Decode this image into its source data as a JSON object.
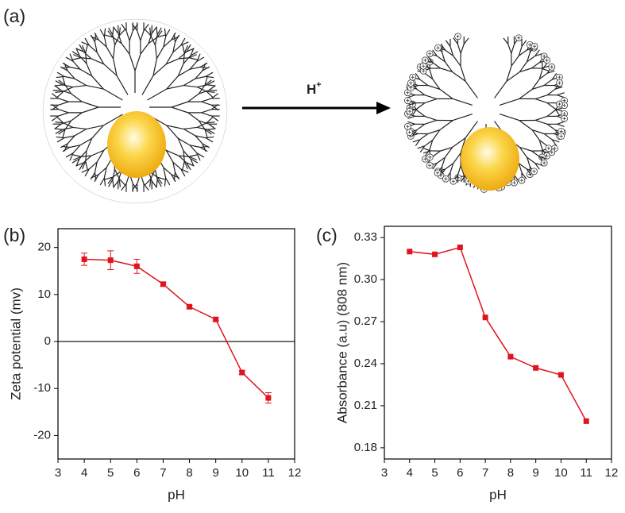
{
  "diagram": {
    "panel_label": "(a)",
    "arrow_label": "H",
    "arrow_label_superscript": "+"
  },
  "chart_data": [
    {
      "type": "line",
      "panel_label": "(b)",
      "x_label": "pH",
      "y_label": "Zeta potential (mv)",
      "x": [
        4,
        5,
        6,
        7,
        8,
        9,
        10,
        11
      ],
      "values": [
        17.5,
        17.3,
        16,
        12.2,
        7.4,
        4.7,
        -6.6,
        -12
      ],
      "errors": [
        1.3,
        2,
        1.5,
        0.4,
        0.3,
        0.3,
        0.4,
        1.1
      ],
      "color": "#e0141e",
      "zero_line": true,
      "xlim": [
        3,
        12
      ],
      "xticks": [
        3,
        4,
        5,
        6,
        7,
        8,
        9,
        10,
        11,
        12
      ],
      "ylim": [
        -25,
        24
      ],
      "yticks": [
        -20,
        -10,
        0,
        10,
        20
      ]
    },
    {
      "type": "line",
      "panel_label": "(c)",
      "x_label": "pH",
      "y_label": "Absorbance (a.u) (808 nm)",
      "x": [
        4,
        5,
        6,
        7,
        8,
        9,
        10,
        11
      ],
      "values": [
        0.32,
        0.318,
        0.323,
        0.273,
        0.245,
        0.237,
        0.232,
        0.199
      ],
      "color": "#e0141e",
      "zero_line": false,
      "xlim": [
        3,
        12
      ],
      "xticks": [
        3,
        4,
        5,
        6,
        7,
        8,
        9,
        10,
        11,
        12
      ],
      "ylim": [
        0.172,
        0.338
      ],
      "yticks": [
        0.18,
        0.21,
        0.24,
        0.27,
        {
          "value": 0.3,
          "label": "0.30"
        },
        0.33
      ]
    }
  ]
}
